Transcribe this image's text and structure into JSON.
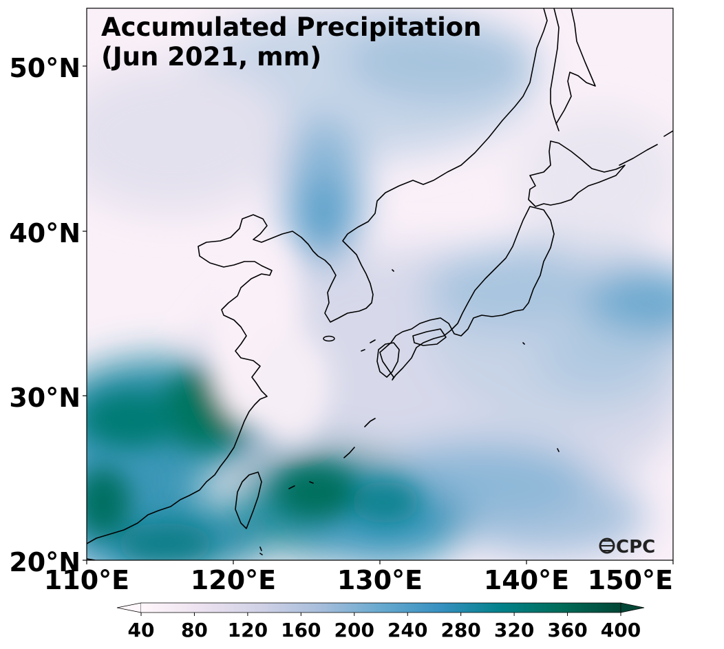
{
  "title": {
    "line1": "Accumulated Precipitation",
    "line2": "(Jun 2021, mm)"
  },
  "axes": {
    "lat_ticks": [
      {
        "value": 50,
        "label": "50°N"
      },
      {
        "value": 40,
        "label": "40°N"
      },
      {
        "value": 30,
        "label": "30°N"
      },
      {
        "value": 20,
        "label": "20°N"
      }
    ],
    "lon_ticks": [
      {
        "value": 110,
        "label": "110°E"
      },
      {
        "value": 120,
        "label": "120°E"
      },
      {
        "value": 130,
        "label": "130°E"
      },
      {
        "value": 140,
        "label": "140°E"
      },
      {
        "value": 150,
        "label": "150°E"
      }
    ],
    "lon_range": [
      110,
      150
    ],
    "lat_range": [
      20,
      53.5
    ]
  },
  "colorbar": {
    "ticks": [
      "40",
      "80",
      "120",
      "160",
      "200",
      "240",
      "280",
      "320",
      "360",
      "400"
    ],
    "colors": [
      "#fff7fb",
      "#ece2f0",
      "#d0d1e6",
      "#a6bddb",
      "#67a9cf",
      "#3690c0",
      "#02818a",
      "#016c59",
      "#014636"
    ],
    "extend": "both"
  },
  "logo": {
    "text": "CPC"
  },
  "colors": {
    "frame": "#000000",
    "background": "#ffffff"
  }
}
